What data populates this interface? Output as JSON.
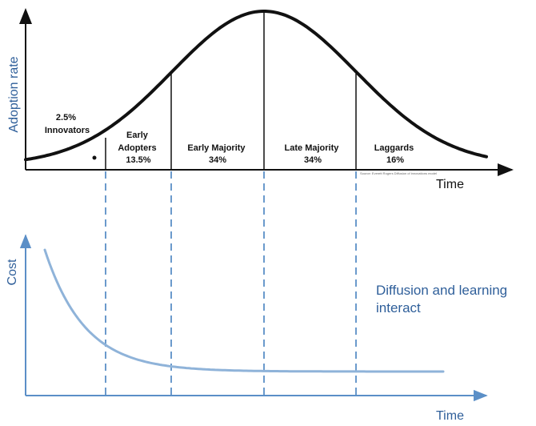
{
  "adoption_chart": {
    "y_axis_label": "Adoption rate",
    "x_axis_label": "Time",
    "source_note": "Source: Everett Rogers Diffusion of innovations model",
    "segments": [
      {
        "lines": [
          "2.5%",
          "Innovators"
        ]
      },
      {
        "lines": [
          "Early",
          "Adopters",
          "13.5%"
        ]
      },
      {
        "lines": [
          "Early Majority",
          "34%"
        ]
      },
      {
        "lines": [
          "Late Majority",
          "34%"
        ]
      },
      {
        "lines": [
          "Laggards",
          "16%"
        ]
      }
    ]
  },
  "cost_chart": {
    "y_axis_label": "Cost",
    "x_axis_label": "Time"
  },
  "annotation": {
    "line1": "Diffusion and learning",
    "line2": "interact"
  },
  "colors": {
    "curve": "#111111",
    "cost_curve": "#8fb3d9",
    "blue_axis": "#5b8fc7",
    "blue_text": "#2f5f9a"
  }
}
